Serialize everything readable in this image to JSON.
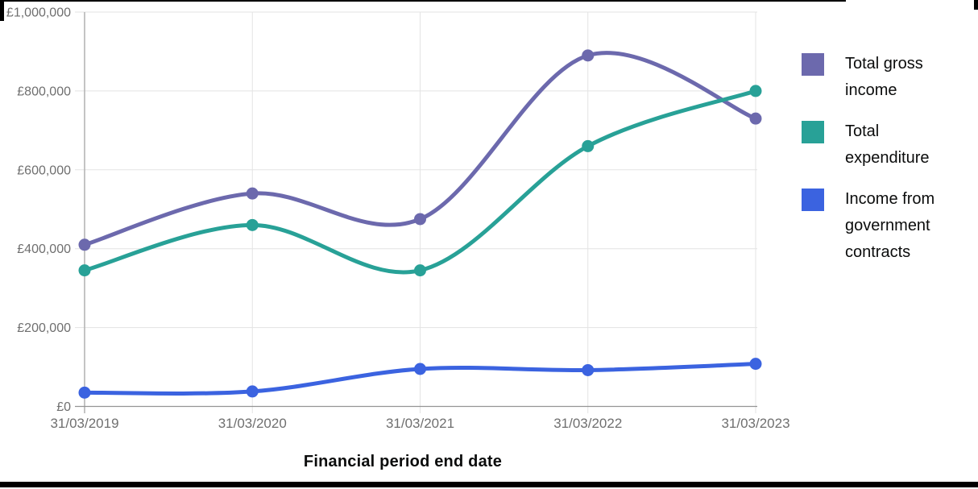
{
  "chart_data": {
    "type": "line",
    "title": "",
    "xlabel": "Financial period end date",
    "categories": [
      "31/03/2019",
      "31/03/2020",
      "31/03/2021",
      "31/03/2022",
      "31/03/2023"
    ],
    "ylim": [
      0,
      1000000
    ],
    "y_ticks": [
      {
        "value": 0,
        "label": "£0"
      },
      {
        "value": 200000,
        "label": "£200,000"
      },
      {
        "value": 400000,
        "label": "£400,000"
      },
      {
        "value": 600000,
        "label": "£600,000"
      },
      {
        "value": 800000,
        "label": "£800,000"
      },
      {
        "value": 1000000,
        "label": "£1,000,000"
      }
    ],
    "series": [
      {
        "name": "Total gross income",
        "color": "#6c69ad",
        "values": [
          410000,
          540000,
          475000,
          890000,
          730000
        ]
      },
      {
        "name": "Total expenditure",
        "color": "#28a197",
        "values": [
          345000,
          460000,
          345000,
          660000,
          800000
        ]
      },
      {
        "name": "Income from government contracts",
        "color": "#3b63e0",
        "values": [
          35000,
          38000,
          95000,
          92000,
          108000
        ]
      }
    ],
    "grid": true,
    "curve": "smooth",
    "legend_position": "right",
    "colors": {
      "grid_line": "#e3e3e3",
      "y_axis_line": "#b1b1b1",
      "x_axis_line": "#949494",
      "tick_text": "#6f6f6f",
      "text": "#0b0c0c"
    }
  }
}
